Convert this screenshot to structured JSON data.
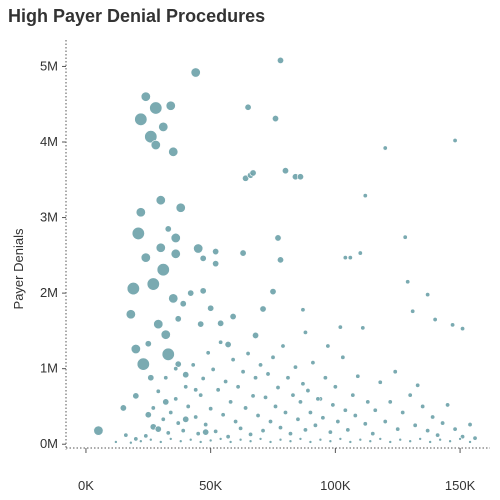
{
  "chart_data": {
    "type": "scatter",
    "title": "High Payer Denial Procedures",
    "xlabel": "",
    "ylabel": "Payer Denials",
    "xlim": [
      -8000,
      162000
    ],
    "ylim": [
      -50000,
      5350000
    ],
    "x_ticks": [
      {
        "value": 0,
        "label": "0K"
      },
      {
        "value": 50000,
        "label": "50K"
      },
      {
        "value": 100000,
        "label": "100K"
      },
      {
        "value": 150000,
        "label": "150K"
      }
    ],
    "y_ticks": [
      {
        "value": 0,
        "label": "0M"
      },
      {
        "value": 1000000,
        "label": "1M"
      },
      {
        "value": 2000000,
        "label": "2M"
      },
      {
        "value": 3000000,
        "label": "3M"
      },
      {
        "value": 4000000,
        "label": "4M"
      },
      {
        "value": 5000000,
        "label": "5M"
      }
    ],
    "grid": false,
    "legend": "none",
    "marker_color": "#6fa3aa",
    "points": [
      [
        5000,
        180000,
        4.7
      ],
      [
        15000,
        480000,
        3.2
      ],
      [
        18000,
        1720000,
        4.7
      ],
      [
        19000,
        2060000,
        6.2
      ],
      [
        20000,
        1260000,
        4.7
      ],
      [
        20000,
        640000,
        3.2
      ],
      [
        21000,
        2790000,
        6.2
      ],
      [
        22000,
        4300000,
        6.2
      ],
      [
        22000,
        3070000,
        4.7
      ],
      [
        23000,
        1060000,
        6.2
      ],
      [
        24000,
        4600000,
        4.7
      ],
      [
        24000,
        2470000,
        4.7
      ],
      [
        25000,
        1330000,
        3.2
      ],
      [
        25000,
        390000,
        3.2
      ],
      [
        26000,
        4070000,
        6.2
      ],
      [
        27000,
        2120000,
        6.2
      ],
      [
        27000,
        230000,
        3.2
      ],
      [
        28000,
        4450000,
        6.2
      ],
      [
        28000,
        3960000,
        4.7
      ],
      [
        29000,
        1590000,
        4.7
      ],
      [
        30000,
        2600000,
        4.7
      ],
      [
        30000,
        3230000,
        4.7
      ],
      [
        31000,
        4200000,
        4.7
      ],
      [
        31000,
        2310000,
        6.2
      ],
      [
        32000,
        1450000,
        4.7
      ],
      [
        33000,
        1190000,
        6.2
      ],
      [
        33000,
        2850000,
        3.2
      ],
      [
        34000,
        4480000,
        4.7
      ],
      [
        35000,
        3870000,
        4.7
      ],
      [
        35000,
        1930000,
        4.7
      ],
      [
        36000,
        2730000,
        4.7
      ],
      [
        36000,
        2520000,
        4.7
      ],
      [
        37000,
        1660000,
        3.2
      ],
      [
        37000,
        1060000,
        3.2
      ],
      [
        38000,
        3130000,
        4.7
      ],
      [
        39000,
        1860000,
        3.2
      ],
      [
        40000,
        920000,
        3.2
      ],
      [
        42000,
        2000000,
        3.2
      ],
      [
        44000,
        4920000,
        4.7
      ],
      [
        45000,
        2590000,
        4.7
      ],
      [
        46000,
        1590000,
        3.2
      ],
      [
        47000,
        2460000,
        3.2
      ],
      [
        47000,
        2030000,
        3.2
      ],
      [
        50000,
        1800000,
        3.2
      ],
      [
        52000,
        2390000,
        3.2
      ],
      [
        52000,
        2550000,
        3.2
      ],
      [
        54000,
        1600000,
        3.2
      ],
      [
        57000,
        1320000,
        3.2
      ],
      [
        59000,
        1690000,
        3.2
      ],
      [
        63000,
        2530000,
        3.2
      ],
      [
        64000,
        3520000,
        3.2
      ],
      [
        65000,
        4460000,
        3.2
      ],
      [
        66000,
        3560000,
        3.2
      ],
      [
        67000,
        3590000,
        3.2
      ],
      [
        68000,
        1440000,
        3.2
      ],
      [
        71000,
        1790000,
        3.2
      ],
      [
        75000,
        2020000,
        3.2
      ],
      [
        76000,
        4310000,
        3.2
      ],
      [
        77000,
        2730000,
        3.2
      ],
      [
        78000,
        2440000,
        3.2
      ],
      [
        78000,
        5080000,
        3.2
      ],
      [
        80000,
        3620000,
        3.2
      ],
      [
        84000,
        3540000,
        3.2
      ],
      [
        86000,
        3540000,
        3.2
      ],
      [
        87000,
        1780000,
        2.2
      ],
      [
        88000,
        1480000,
        2.2
      ],
      [
        94000,
        600000,
        2.2
      ],
      [
        97000,
        1300000,
        2.2
      ],
      [
        102000,
        1550000,
        2.2
      ],
      [
        104000,
        2470000,
        2.2
      ],
      [
        106000,
        2470000,
        2.2
      ],
      [
        110000,
        2530000,
        2.2
      ],
      [
        111000,
        1540000,
        2.2
      ],
      [
        112000,
        3290000,
        2.2
      ],
      [
        120000,
        3920000,
        2.2
      ],
      [
        124000,
        960000,
        2.2
      ],
      [
        128000,
        2740000,
        2.2
      ],
      [
        129000,
        2150000,
        2.2
      ],
      [
        131000,
        1760000,
        2.2
      ],
      [
        133000,
        780000,
        2.2
      ],
      [
        137000,
        1980000,
        2.2
      ],
      [
        140000,
        1650000,
        2.2
      ],
      [
        147000,
        1580000,
        2.2
      ],
      [
        148000,
        4020000,
        2.2
      ],
      [
        151000,
        1530000,
        2.2
      ],
      [
        16000,
        120000,
        2.2
      ],
      [
        20000,
        70000,
        2.2
      ],
      [
        24000,
        110000,
        2.2
      ],
      [
        27000,
        480000,
        2.2
      ],
      [
        29000,
        700000,
        2.2
      ],
      [
        31000,
        330000,
        2.2
      ],
      [
        32000,
        880000,
        2.2
      ],
      [
        33000,
        150000,
        2.2
      ],
      [
        34000,
        420000,
        2.2
      ],
      [
        36000,
        600000,
        2.2
      ],
      [
        37000,
        280000,
        2.2
      ],
      [
        39000,
        180000,
        2.2
      ],
      [
        40000,
        760000,
        2.2
      ],
      [
        41000,
        500000,
        2.2
      ],
      [
        43000,
        1050000,
        2.2
      ],
      [
        44000,
        360000,
        2.2
      ],
      [
        45000,
        140000,
        2.2
      ],
      [
        46000,
        650000,
        2.2
      ],
      [
        47000,
        870000,
        2.2
      ],
      [
        48000,
        260000,
        2.2
      ],
      [
        49000,
        1210000,
        2.2
      ],
      [
        50000,
        470000,
        2.2
      ],
      [
        51000,
        990000,
        2.2
      ],
      [
        52000,
        170000,
        2.2
      ],
      [
        53000,
        720000,
        2.2
      ],
      [
        54000,
        1350000,
        2.2
      ],
      [
        55000,
        390000,
        2.2
      ],
      [
        56000,
        830000,
        2.2
      ],
      [
        57000,
        100000,
        2.2
      ],
      [
        58000,
        560000,
        2.2
      ],
      [
        59000,
        1120000,
        2.2
      ],
      [
        60000,
        300000,
        2.2
      ],
      [
        61000,
        760000,
        2.2
      ],
      [
        62000,
        210000,
        2.2
      ],
      [
        63000,
        960000,
        2.2
      ],
      [
        64000,
        480000,
        2.2
      ],
      [
        65000,
        1200000,
        2.2
      ],
      [
        66000,
        130000,
        2.2
      ],
      [
        67000,
        640000,
        2.2
      ],
      [
        68000,
        880000,
        2.2
      ],
      [
        69000,
        380000,
        2.2
      ],
      [
        70000,
        1050000,
        2.2
      ],
      [
        71000,
        180000,
        2.2
      ],
      [
        72000,
        620000,
        2.2
      ],
      [
        73000,
        930000,
        2.2
      ],
      [
        74000,
        300000,
        2.2
      ],
      [
        75000,
        1150000,
        2.2
      ],
      [
        76000,
        500000,
        2.2
      ],
      [
        77000,
        750000,
        2.2
      ],
      [
        78000,
        220000,
        2.2
      ],
      [
        79000,
        1300000,
        2.2
      ],
      [
        80000,
        420000,
        2.2
      ],
      [
        81000,
        880000,
        2.2
      ],
      [
        82000,
        140000,
        2.2
      ],
      [
        83000,
        650000,
        2.2
      ],
      [
        84000,
        1020000,
        2.2
      ],
      [
        85000,
        330000,
        2.2
      ],
      [
        86000,
        560000,
        2.2
      ],
      [
        87000,
        800000,
        2.2
      ],
      [
        88000,
        190000,
        2.2
      ],
      [
        89000,
        710000,
        2.2
      ],
      [
        90000,
        420000,
        2.2
      ],
      [
        91000,
        1080000,
        2.2
      ],
      [
        92000,
        250000,
        2.2
      ],
      [
        93000,
        600000,
        2.2
      ],
      [
        95000,
        350000,
        2.2
      ],
      [
        96000,
        880000,
        2.2
      ],
      [
        98000,
        160000,
        2.2
      ],
      [
        99000,
        520000,
        2.2
      ],
      [
        100000,
        760000,
        2.2
      ],
      [
        101000,
        300000,
        2.2
      ],
      [
        103000,
        1150000,
        2.2
      ],
      [
        104000,
        450000,
        2.2
      ],
      [
        105000,
        190000,
        2.2
      ],
      [
        107000,
        650000,
        2.2
      ],
      [
        108000,
        380000,
        2.2
      ],
      [
        109000,
        900000,
        2.2
      ],
      [
        112000,
        270000,
        2.2
      ],
      [
        113000,
        560000,
        2.2
      ],
      [
        115000,
        140000,
        2.2
      ],
      [
        116000,
        450000,
        2.2
      ],
      [
        118000,
        820000,
        2.2
      ],
      [
        120000,
        300000,
        2.2
      ],
      [
        122000,
        560000,
        2.2
      ],
      [
        125000,
        200000,
        2.2
      ],
      [
        127000,
        420000,
        2.2
      ],
      [
        130000,
        650000,
        2.2
      ],
      [
        132000,
        250000,
        2.2
      ],
      [
        135000,
        500000,
        2.2
      ],
      [
        137000,
        180000,
        2.2
      ],
      [
        139000,
        360000,
        2.2
      ],
      [
        141000,
        120000,
        2.2
      ],
      [
        143000,
        280000,
        2.2
      ],
      [
        145000,
        520000,
        2.2
      ],
      [
        148000,
        200000,
        2.2
      ],
      [
        151000,
        100000,
        2.2
      ],
      [
        154000,
        260000,
        2.2
      ],
      [
        156000,
        80000,
        2.2
      ],
      [
        12000,
        30000,
        1.5
      ],
      [
        18000,
        20000,
        1.5
      ],
      [
        22000,
        40000,
        1.5
      ],
      [
        26000,
        60000,
        1.5
      ],
      [
        30000,
        30000,
        1.5
      ],
      [
        34000,
        70000,
        1.5
      ],
      [
        38000,
        40000,
        1.5
      ],
      [
        42000,
        60000,
        1.5
      ],
      [
        46000,
        30000,
        1.5
      ],
      [
        50000,
        50000,
        1.5
      ],
      [
        54000,
        70000,
        1.5
      ],
      [
        58000,
        30000,
        1.5
      ],
      [
        62000,
        60000,
        1.5
      ],
      [
        66000,
        40000,
        1.5
      ],
      [
        70000,
        70000,
        1.5
      ],
      [
        74000,
        30000,
        1.5
      ],
      [
        78000,
        60000,
        1.5
      ],
      [
        82000,
        40000,
        1.5
      ],
      [
        86000,
        70000,
        1.5
      ],
      [
        90000,
        30000,
        1.5
      ],
      [
        94000,
        60000,
        1.5
      ],
      [
        98000,
        40000,
        1.5
      ],
      [
        102000,
        70000,
        1.5
      ],
      [
        106000,
        30000,
        1.5
      ],
      [
        110000,
        60000,
        1.5
      ],
      [
        114000,
        40000,
        1.5
      ],
      [
        118000,
        70000,
        1.5
      ],
      [
        122000,
        30000,
        1.5
      ],
      [
        126000,
        60000,
        1.5
      ],
      [
        130000,
        40000,
        1.5
      ],
      [
        134000,
        70000,
        1.5
      ],
      [
        138000,
        30000,
        1.5
      ],
      [
        142000,
        60000,
        1.5
      ],
      [
        146000,
        40000,
        1.5
      ],
      [
        150000,
        70000,
        1.5
      ],
      [
        154000,
        30000,
        1.5
      ],
      [
        29000,
        200000,
        3.2
      ],
      [
        32000,
        560000,
        3.2
      ],
      [
        26000,
        880000,
        3.2
      ],
      [
        36000,
        1000000,
        2.2
      ],
      [
        40000,
        330000,
        3.2
      ],
      [
        44000,
        720000,
        2.2
      ],
      [
        48000,
        160000,
        3.2
      ]
    ]
  }
}
